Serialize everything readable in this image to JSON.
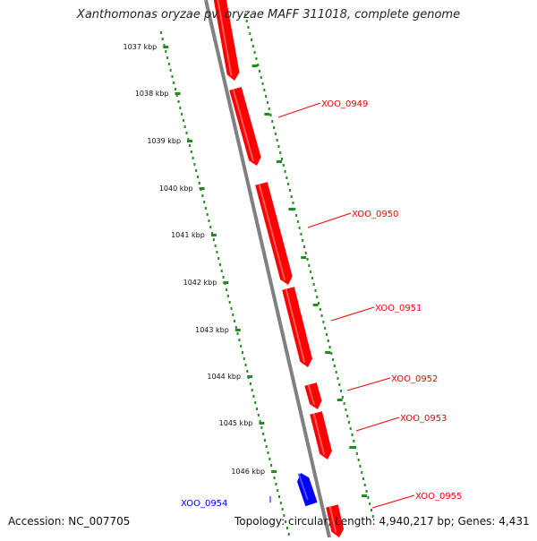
{
  "title": "Xanthomonas oryzae pv. oryzae MAFF 311018, complete genome",
  "accession": "Accession: NC_007705",
  "genome_info": "Topology: circular; Length: 4,940,217 bp; Genes: 4,431",
  "colors": {
    "forward_gene": "#ff0000",
    "reverse_gene": "#0000ff",
    "ruler": "#228b22",
    "backbone": "#808080"
  },
  "ruler_labels": [
    "1037 kbp",
    "1038 kbp",
    "1039 kbp",
    "1040 kbp",
    "1041 kbp",
    "1042 kbp",
    "1043 kbp",
    "1044 kbp",
    "1045 kbp",
    "1046 kbp"
  ],
  "genes": [
    {
      "label": "",
      "strand": "forward"
    },
    {
      "label": "XOO_0949",
      "strand": "forward"
    },
    {
      "label": "XOO_0950",
      "strand": "forward"
    },
    {
      "label": "XOO_0951",
      "strand": "forward"
    },
    {
      "label": "XOO_0952",
      "strand": "forward"
    },
    {
      "label": "XOO_0953",
      "strand": "forward"
    },
    {
      "label": "XOO_0954",
      "strand": "reverse"
    },
    {
      "label": "XOO_0955",
      "strand": "forward"
    }
  ]
}
